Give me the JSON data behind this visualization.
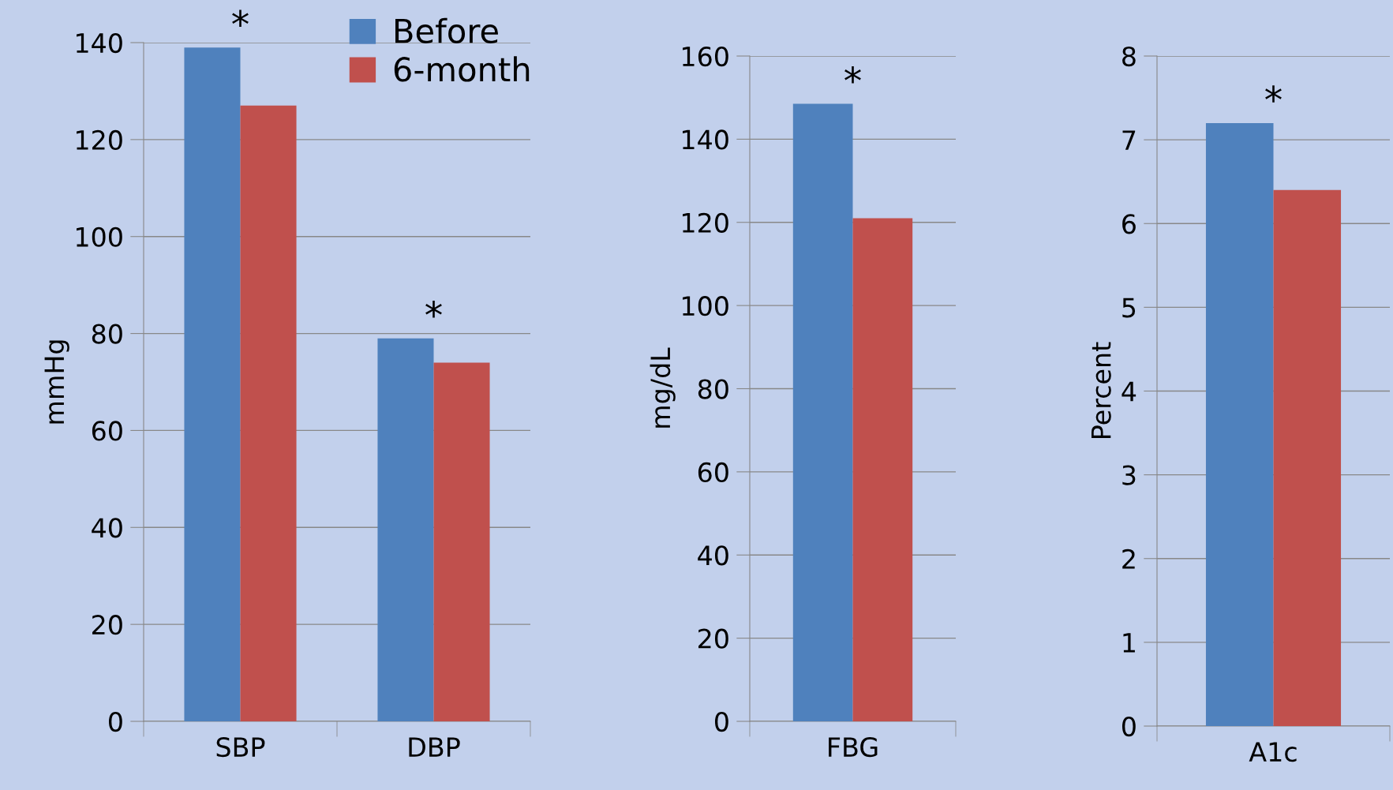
{
  "chart_data": [
    {
      "type": "bar",
      "ylabel": "mmHg",
      "categories": [
        "SBP",
        "DBP"
      ],
      "series": [
        {
          "name": "Before",
          "color": "#4f81bd",
          "values": [
            139,
            79
          ]
        },
        {
          "name": "6-month",
          "color": "#c0504d",
          "values": [
            127,
            74
          ]
        }
      ],
      "ylim": [
        0,
        140
      ],
      "yticks": [
        0,
        20,
        40,
        60,
        80,
        100,
        120,
        140
      ],
      "grid": "y",
      "legend": "top right",
      "annotations": [
        {
          "text": "*",
          "x": "SBP",
          "y": 139
        },
        {
          "text": "*",
          "x": "DBP",
          "y": 79
        }
      ]
    },
    {
      "type": "bar",
      "ylabel": "mg/dL",
      "categories": [
        "FBG"
      ],
      "series": [
        {
          "color": "#4f81bd",
          "values": [
            148.5
          ]
        },
        {
          "color": "#c0504d",
          "values": [
            121
          ]
        }
      ],
      "ylim": [
        0,
        160
      ],
      "yticks": [
        0,
        20,
        40,
        60,
        80,
        100,
        120,
        140,
        160
      ],
      "grid": "y",
      "annotations": [
        {
          "text": "*",
          "x": "FBG",
          "y": 148.5
        }
      ]
    },
    {
      "type": "bar",
      "ylabel": "Percent",
      "categories": [
        "A1c"
      ],
      "series": [
        {
          "color": "#4f81bd",
          "values": [
            7.2
          ]
        },
        {
          "color": "#c0504d",
          "values": [
            6.4
          ]
        }
      ],
      "ylim": [
        0,
        8
      ],
      "yticks": [
        0,
        1,
        2,
        3,
        4,
        5,
        6,
        7,
        8
      ],
      "grid": "y",
      "annotations": [
        {
          "text": "*",
          "x": "A1c",
          "y": 7.2
        }
      ]
    }
  ]
}
